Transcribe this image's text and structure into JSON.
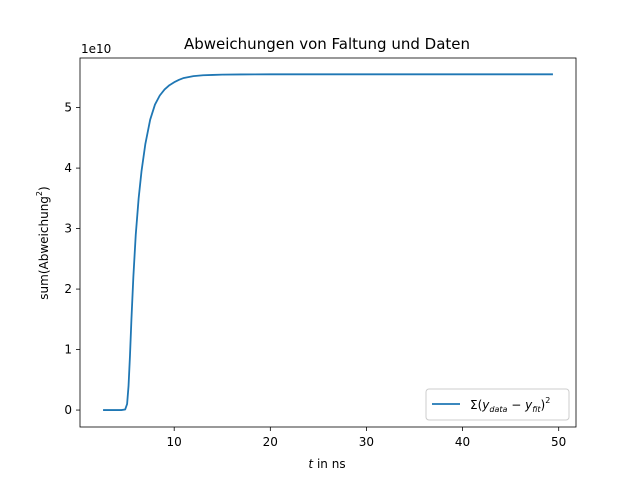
{
  "chart_data": {
    "type": "line",
    "title": "Abweichungen von Faltung und Daten",
    "xlabel": {
      "italic": "t",
      "rest": " in ns"
    },
    "ylabel": {
      "base": "sum(Abweichung",
      "sup": "2",
      "close": ")"
    },
    "offset_label": "1e10",
    "xlim": [
      0.2,
      51.8
    ],
    "ylim": [
      -0.28,
      5.82
    ],
    "xticks": [
      10,
      20,
      30,
      40,
      50
    ],
    "yticks": [
      0,
      1,
      2,
      3,
      4,
      5
    ],
    "grid": false,
    "legend_placement": "lower-right",
    "series": [
      {
        "name": "Σ(y_data − y_fit)²",
        "legend": {
          "sigma": "Σ(",
          "y1": "y",
          "sub1": "data",
          "minus": " − ",
          "y2": "y",
          "sub2": "fit",
          "close": ")",
          "sup": "2"
        },
        "color": "#1f77b4",
        "x": [
          2.6,
          3.5,
          4.5,
          4.9,
          5.1,
          5.25,
          5.4,
          5.55,
          5.75,
          6.0,
          6.3,
          6.6,
          7.0,
          7.5,
          8.0,
          8.5,
          9.0,
          9.5,
          10.0,
          10.5,
          11.0,
          12.0,
          13.0,
          14.0,
          15.0,
          17.0,
          20.0,
          25.0,
          30.0,
          40.0,
          49.4
        ],
        "y": [
          0.0,
          0.0,
          0.0,
          0.01,
          0.1,
          0.4,
          0.9,
          1.5,
          2.2,
          2.9,
          3.5,
          3.95,
          4.4,
          4.8,
          5.05,
          5.2,
          5.3,
          5.37,
          5.42,
          5.46,
          5.49,
          5.52,
          5.535,
          5.54,
          5.545,
          5.548,
          5.55,
          5.55,
          5.55,
          5.55,
          5.55
        ]
      }
    ]
  }
}
